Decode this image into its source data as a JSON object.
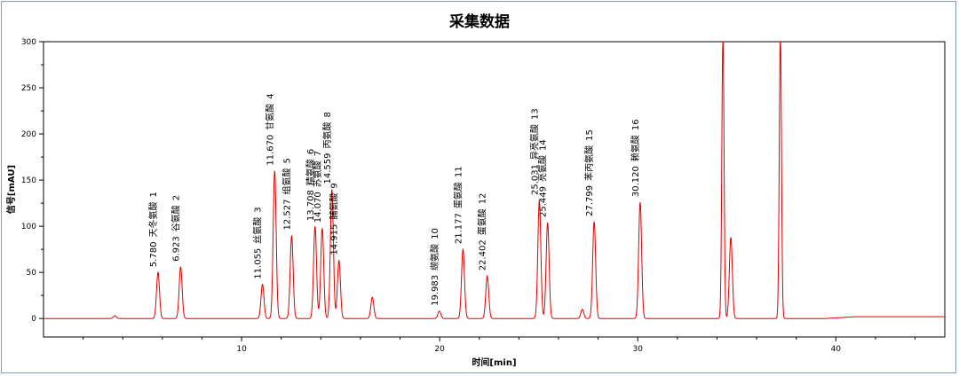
{
  "chart_data": {
    "type": "line",
    "title": "采集数据",
    "xlabel": "时间[min]",
    "ylabel": "信号[mAU]",
    "xlim": [
      0,
      45.5
    ],
    "ylim": [
      -20,
      300
    ],
    "x_ticks": [
      "10",
      "20",
      "30",
      "40"
    ],
    "y_ticks": [
      "0",
      "50",
      "100",
      "150",
      "200",
      "250",
      "300"
    ],
    "grid": false,
    "series": [
      {
        "color": "#e00000",
        "peaks": [
          {
            "x": 3.6,
            "y": 3
          },
          {
            "x": 5.78,
            "y": 50
          },
          {
            "x": 6.923,
            "y": 56
          },
          {
            "x": 11.055,
            "y": 37
          },
          {
            "x": 11.67,
            "y": 160
          },
          {
            "x": 12.527,
            "y": 90
          },
          {
            "x": 13.708,
            "y": 100
          },
          {
            "x": 14.07,
            "y": 98
          },
          {
            "x": 14.559,
            "y": 140
          },
          {
            "x": 14.915,
            "y": 63
          },
          {
            "x": 16.6,
            "y": 23
          },
          {
            "x": 19.983,
            "y": 8
          },
          {
            "x": 21.177,
            "y": 75
          },
          {
            "x": 22.402,
            "y": 46
          },
          {
            "x": 25.031,
            "y": 128
          },
          {
            "x": 25.449,
            "y": 104
          },
          {
            "x": 27.2,
            "y": 10
          },
          {
            "x": 27.799,
            "y": 105
          },
          {
            "x": 30.12,
            "y": 126
          },
          {
            "x": 34.3,
            "y": 310
          },
          {
            "x": 34.7,
            "y": 88
          },
          {
            "x": 37.2,
            "y": 310
          }
        ]
      }
    ],
    "peak_labels": [
      {
        "time": "5.780",
        "name": "天冬氨酸",
        "num": "1"
      },
      {
        "time": "6.923",
        "name": "谷氨酸",
        "num": "2"
      },
      {
        "time": "11.055",
        "name": "丝氨酸",
        "num": "3"
      },
      {
        "time": "11.670",
        "name": "甘氨酸",
        "num": "4"
      },
      {
        "time": "12.527",
        "name": "组氨酸",
        "num": "5"
      },
      {
        "time": "13.708",
        "name": "精氨酸",
        "num": "6"
      },
      {
        "time": "14.070",
        "name": "苏氨酸",
        "num": "7"
      },
      {
        "time": "14.559",
        "name": "丙氨酸",
        "num": "8"
      },
      {
        "time": "14.915",
        "name": "脯氨酸",
        "num": "9"
      },
      {
        "time": "19.983",
        "name": "缬氨酸",
        "num": "10"
      },
      {
        "time": "21.177",
        "name": "蛋氨酸",
        "num": "11"
      },
      {
        "time": "22.402",
        "name": "蛋氨酸",
        "num": "12"
      },
      {
        "time": "25.031",
        "name": "异亮氨酸",
        "num": "13"
      },
      {
        "time": "25.449",
        "name": "亮氨酸",
        "num": "14"
      },
      {
        "time": "27.799",
        "name": "苯丙氨酸",
        "num": "15"
      },
      {
        "time": "30.120",
        "name": "赖氨酸",
        "num": "16"
      }
    ]
  }
}
